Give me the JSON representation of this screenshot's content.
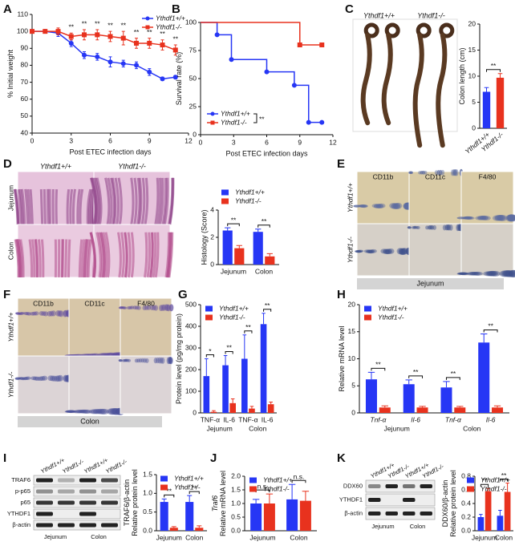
{
  "panel_letters": [
    "A",
    "B",
    "C",
    "D",
    "E",
    "F",
    "G",
    "H",
    "I",
    "J",
    "K"
  ],
  "chart_data": [
    {
      "type": "line",
      "xlabel": "Post ETEC infection days",
      "ylabel": "% Initial weight",
      "xlim": [
        0,
        12
      ],
      "xticks": [
        0,
        3,
        6,
        9,
        12
      ],
      "ylim": [
        40,
        110
      ],
      "yticks": [
        40,
        50,
        60,
        70,
        80,
        90,
        100,
        110
      ],
      "legend": "upper right",
      "series": [
        {
          "name": "Ythdf1+/+",
          "color": "#2636f5",
          "marker": "circle",
          "x": [
            0,
            1,
            2,
            3,
            4,
            5,
            6,
            7,
            8,
            9,
            10,
            11
          ],
          "values": [
            100,
            100,
            99,
            93,
            86,
            85,
            82,
            81,
            80,
            76,
            72,
            73
          ],
          "errors": [
            1,
            1,
            2,
            2,
            2,
            2,
            3,
            2,
            2,
            2,
            1,
            1
          ]
        },
        {
          "name": "Ythdf1-/-",
          "color": "#e8321e",
          "marker": "square",
          "x": [
            0,
            1,
            2,
            3,
            4,
            5,
            6,
            7,
            8,
            9,
            10,
            11
          ],
          "values": [
            100,
            100,
            100,
            97,
            98,
            98,
            97,
            96,
            93,
            93,
            92,
            89
          ],
          "errors": [
            1,
            1,
            2,
            2,
            3,
            3,
            3,
            4,
            3,
            3,
            3,
            3
          ]
        }
      ],
      "annotations": [
        {
          "x": 3,
          "label": "**"
        },
        {
          "x": 4,
          "label": "**"
        },
        {
          "x": 5,
          "label": "**"
        },
        {
          "x": 6,
          "label": "**"
        },
        {
          "x": 7,
          "label": "**"
        },
        {
          "x": 8,
          "label": "**"
        },
        {
          "x": 9,
          "label": "**"
        },
        {
          "x": 10,
          "label": "**"
        },
        {
          "x": 11,
          "label": "**"
        }
      ]
    },
    {
      "type": "line",
      "step": true,
      "xlabel": "Post ETEC infection days",
      "ylabel": "Survival rate (%)",
      "xlim": [
        0,
        12
      ],
      "xticks": [
        0,
        3,
        6,
        9,
        12
      ],
      "ylim": [
        0,
        100
      ],
      "yticks": [
        0,
        25,
        50,
        75,
        100
      ],
      "legend": "lower left",
      "legend_note": "**",
      "series": [
        {
          "name": "Ythdf1+/+",
          "color": "#2636f5",
          "marker": "circle",
          "x": [
            0,
            1.5,
            2.8,
            6,
            8.5,
            9.8,
            11
          ],
          "values": [
            100,
            89,
            67,
            56,
            44,
            11,
            11
          ]
        },
        {
          "name": "Ythdf1-/-",
          "color": "#e8321e",
          "marker": "square",
          "x": [
            0,
            9,
            11
          ],
          "values": [
            100,
            80,
            80
          ]
        }
      ]
    },
    {
      "type": "bar",
      "ylabel": "Colon length (cm)",
      "categories": [
        "Ythdf1+/+",
        "Ythdf1-/-"
      ],
      "values": [
        7.0,
        9.7
      ],
      "errors": [
        0.8,
        0.8
      ],
      "colors": [
        "#2636f5",
        "#e8321e"
      ],
      "ylim": [
        0,
        20
      ],
      "yticks": [
        0,
        5,
        10,
        15,
        20
      ],
      "annotations": [
        "**"
      ],
      "rotate_labels": true
    },
    {
      "type": "bar",
      "ylabel": "Histology (Score)",
      "categories": [
        "Jejunum",
        "Colon"
      ],
      "ylim": [
        0,
        4
      ],
      "yticks": [
        0,
        2,
        4
      ],
      "legend": "top",
      "series": [
        {
          "name": "Ythdf1+/+",
          "color": "#2636f5",
          "values": [
            2.5,
            2.4
          ],
          "errors": [
            0.2,
            0.2
          ]
        },
        {
          "name": "Ythdf1-/-",
          "color": "#e8321e",
          "values": [
            1.2,
            0.6
          ],
          "errors": [
            0.2,
            0.2
          ]
        }
      ],
      "annotations": [
        "**",
        "**"
      ]
    },
    {
      "type": "bar",
      "ylabel": "Protein level (pg/mg protein)",
      "categories": [
        "TNF-α",
        "IL-6",
        "TNF-α",
        "IL-6"
      ],
      "group_labels": [
        "Jejunum",
        "Colon"
      ],
      "ylim": [
        0,
        500
      ],
      "yticks": [
        0,
        100,
        200,
        300,
        400,
        500
      ],
      "legend": "upper left",
      "series": [
        {
          "name": "Ythdf1+/+",
          "color": "#2636f5",
          "values": [
            170,
            220,
            250,
            410
          ],
          "errors": [
            80,
            45,
            110,
            50
          ]
        },
        {
          "name": "Ythdf1-/-",
          "color": "#e8321e",
          "values": [
            5,
            45,
            20,
            40
          ],
          "errors": [
            5,
            20,
            10,
            10
          ]
        }
      ],
      "annotations": [
        "*",
        "**",
        "**",
        "**"
      ]
    },
    {
      "type": "bar",
      "ylabel": "Relative mRNA level",
      "categories": [
        "Tnf-α",
        "Il-6",
        "Tnf-α",
        "Il-6"
      ],
      "italic_categories": true,
      "group_labels": [
        "Jejunum",
        "Colon"
      ],
      "ylim": [
        0,
        20
      ],
      "yticks": [
        0,
        5,
        10,
        15,
        20
      ],
      "legend": "upper left",
      "series": [
        {
          "name": "Ythdf1+/+",
          "color": "#2636f5",
          "values": [
            6.2,
            5.3,
            4.7,
            13.0
          ],
          "errors": [
            1.3,
            0.8,
            1.1,
            1.6
          ]
        },
        {
          "name": "Ythdf1-/-",
          "color": "#e8321e",
          "values": [
            1,
            1,
            1,
            1
          ],
          "errors": [
            0.3,
            0.2,
            0.2,
            0.3
          ]
        }
      ],
      "annotations": [
        "**",
        "**",
        "**",
        "**"
      ]
    },
    {
      "type": "bar",
      "ylabel": [
        "TRAF6/β-actin",
        "Relative protein level"
      ],
      "categories": [
        "Jejunum",
        "Colon"
      ],
      "ylim": [
        0,
        1.5
      ],
      "yticks": [
        {
          "value": 0,
          "label": "0.0"
        },
        0.5,
        {
          "value": 1,
          "label": "1.0"
        },
        1.5
      ],
      "legend": "upper right",
      "series": [
        {
          "name": "Ythdf1+/+",
          "color": "#2636f5",
          "values": [
            0.77,
            0.77
          ],
          "errors": [
            0.08,
            0.17
          ]
        },
        {
          "name": "Ythdf1-/-",
          "color": "#e8321e",
          "values": [
            0.08,
            0.08
          ],
          "errors": [
            0.03,
            0.05
          ]
        }
      ],
      "annotations": [
        "**",
        "**"
      ]
    },
    {
      "type": "bar",
      "ylabel": [
        "Traf6",
        "Relative mRNA level"
      ],
      "categories": [
        "Jejunum",
        "Colon"
      ],
      "ylim": [
        0,
        2
      ],
      "yticks": [
        {
          "value": 0,
          "label": "0.0"
        },
        0.5,
        {
          "value": 1,
          "label": "1.0"
        },
        1.5,
        {
          "value": 2,
          "label": "2.0"
        }
      ],
      "legend": "upper left",
      "series": [
        {
          "name": "Ythdf1+/+",
          "color": "#2636f5",
          "values": [
            1.0,
            1.15
          ],
          "errors": [
            0.15,
            0.55
          ]
        },
        {
          "name": "Ythdf1-/-",
          "color": "#e8321e",
          "values": [
            1.0,
            1.1
          ],
          "errors": [
            0.35,
            0.35
          ]
        }
      ],
      "annotations": [
        "n.s.",
        "n.s."
      ]
    },
    {
      "type": "bar",
      "ylabel": [
        "DDX60/β-actin",
        "Relative protein level"
      ],
      "categories": [
        "Jejunum",
        "Colon"
      ],
      "ylim": [
        0,
        0.8
      ],
      "yticks": [
        {
          "value": 0,
          "label": "0.0"
        },
        0.2,
        0.4,
        0.6,
        0.8
      ],
      "legend": "upper right",
      "series": [
        {
          "name": "Ythdf1+/+",
          "color": "#2636f5",
          "values": [
            0.2,
            0.22
          ],
          "errors": [
            0.04,
            0.08
          ]
        },
        {
          "name": "Ythdf1-/-",
          "color": "#e8321e",
          "values": [
            0.58,
            0.57
          ],
          "errors": [
            0.04,
            0.13
          ]
        }
      ],
      "annotations": [
        "**",
        "**"
      ]
    }
  ],
  "micrographs": [
    {
      "columns": [
        "Ythdf1+/+",
        "Ythdf1-/-"
      ]
    },
    {
      "columns": [
        "Ythdf1+/+",
        "Ythdf1-/-"
      ],
      "rows": [
        "Jejunum",
        "Colon"
      ]
    },
    {
      "columns": [
        "CD11b",
        "CD11c",
        "F4/80"
      ],
      "rows": [
        "Ythdf1+/+",
        "Ythdf1-/-"
      ],
      "footer": "Jejunum"
    },
    {
      "columns": [
        "CD11b",
        "CD11c",
        "F4/80"
      ],
      "rows": [
        "Ythdf1+/+",
        "Ythdf1-/-"
      ],
      "footer": "Colon"
    }
  ],
  "blots": [
    {
      "lanes": [
        "Ythdf1+/+",
        "Ythdf1-/-",
        "Ythdf1+/+",
        "Ythdf1-/-"
      ],
      "rows": [
        "TRAF6",
        "p-p65",
        "p65",
        "YTHDF1",
        "β-actin"
      ],
      "groups": [
        "Jejunum",
        "Colon"
      ]
    },
    {
      "lanes": [
        "Ythdf1+/+",
        "Ythdf1-/-",
        "Ythdf1+/+",
        "Ythdf1-/-"
      ],
      "rows": [
        "DDX60",
        "YTHDF1",
        "β-actin"
      ],
      "groups": [
        "Jejunum",
        "Colon"
      ]
    }
  ]
}
